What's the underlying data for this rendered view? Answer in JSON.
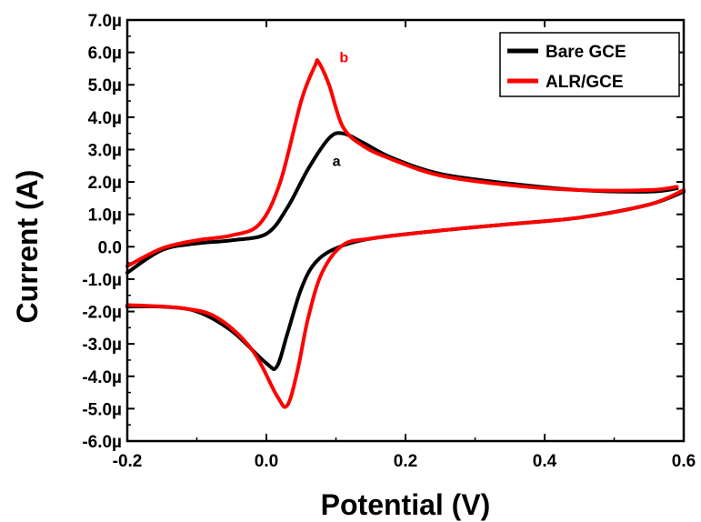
{
  "chart_data": {
    "type": "line",
    "xlabel": "Potential  (V)",
    "ylabel": "Current  (A)",
    "xlim": [
      -0.2,
      0.6
    ],
    "ylim": [
      -6.0,
      7.0
    ],
    "y_unit_suffix": "µ",
    "x_ticks": [
      -0.2,
      0.0,
      0.2,
      0.4,
      0.6
    ],
    "x_tick_labels": [
      "-0.2",
      "0.0",
      "0.2",
      "0.4",
      "0.6"
    ],
    "y_ticks": [
      -6,
      -5,
      -4,
      -3,
      -2,
      -1,
      0,
      1,
      2,
      3,
      4,
      5,
      6,
      7
    ],
    "y_tick_labels": [
      "-6.0µ",
      "-5.0µ",
      "-4.0µ",
      "-3.0µ",
      "-2.0µ",
      "-1.0µ",
      "0.0",
      "1.0µ",
      "2.0µ",
      "3.0µ",
      "4.0µ",
      "5.0µ",
      "6.0µ",
      "7.0µ"
    ],
    "grid": false,
    "legend_position": "top-right",
    "series": [
      {
        "name": "Bare GCE",
        "color": "#000000",
        "forward": {
          "x": [
            -0.2,
            -0.15,
            -0.1,
            -0.05,
            0.0,
            0.03,
            0.06,
            0.09,
            0.11,
            0.14,
            0.18,
            0.25,
            0.35,
            0.45,
            0.55,
            0.59
          ],
          "y": [
            -0.8,
            -0.1,
            0.1,
            0.2,
            0.4,
            1.2,
            2.4,
            3.35,
            3.5,
            3.2,
            2.75,
            2.25,
            1.95,
            1.75,
            1.7,
            1.8
          ]
        },
        "reverse": {
          "x": [
            0.6,
            0.55,
            0.45,
            0.35,
            0.25,
            0.15,
            0.1,
            0.07,
            0.05,
            0.03,
            0.015,
            0.0,
            -0.05,
            -0.1,
            -0.15,
            -0.2
          ],
          "y": [
            1.7,
            1.3,
            0.9,
            0.7,
            0.5,
            0.25,
            -0.05,
            -0.5,
            -1.3,
            -2.7,
            -3.7,
            -3.6,
            -2.6,
            -2.0,
            -1.85,
            -1.85
          ]
        }
      },
      {
        "name": "ALR/GCE",
        "color": "#ff0000",
        "forward": {
          "x": [
            -0.2,
            -0.15,
            -0.1,
            -0.05,
            -0.01,
            0.02,
            0.05,
            0.07,
            0.075,
            0.09,
            0.11,
            0.14,
            0.18,
            0.25,
            0.35,
            0.45,
            0.55,
            0.59
          ],
          "y": [
            -0.6,
            -0.05,
            0.2,
            0.35,
            0.7,
            2.0,
            4.5,
            5.6,
            5.7,
            5.0,
            3.7,
            3.1,
            2.7,
            2.2,
            1.9,
            1.75,
            1.75,
            1.85
          ]
        },
        "reverse": {
          "x": [
            0.6,
            0.55,
            0.45,
            0.35,
            0.25,
            0.15,
            0.11,
            0.08,
            0.06,
            0.045,
            0.03,
            0.015,
            -0.02,
            -0.07,
            -0.12,
            -0.2
          ],
          "y": [
            1.75,
            1.3,
            0.9,
            0.7,
            0.5,
            0.25,
            0.05,
            -0.8,
            -2.2,
            -3.8,
            -4.9,
            -4.6,
            -3.2,
            -2.2,
            -1.9,
            -1.8
          ]
        }
      }
    ],
    "annotations": [
      {
        "text": "a",
        "x": 0.095,
        "y": 2.5,
        "color": "#000000"
      },
      {
        "text": "b",
        "x": 0.105,
        "y": 5.7,
        "color": "#ff0000"
      }
    ]
  }
}
